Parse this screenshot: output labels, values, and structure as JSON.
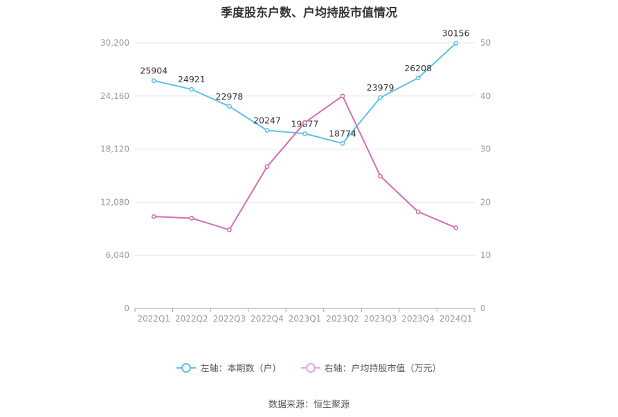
{
  "chart_data": {
    "type": "line",
    "title": "季度股东户数、户均持股市值情况",
    "categories": [
      "2022Q1",
      "2022Q2",
      "2022Q3",
      "2022Q4",
      "2023Q1",
      "2023Q2",
      "2023Q3",
      "2023Q4",
      "2024Q1"
    ],
    "series": [
      {
        "name": "左轴：本期数（户）",
        "axis": "left",
        "color": "#5bc0eb",
        "values": [
          25904,
          24921,
          22978,
          20247,
          19877,
          18774,
          23979,
          26208,
          30156
        ],
        "labels": [
          "25904",
          "24921",
          "22978",
          "20247",
          "19877",
          "18774",
          "23979",
          "26208",
          "30156"
        ]
      },
      {
        "name": "右轴：户均持股市值（万元）",
        "axis": "right",
        "color": "#d36db0",
        "values": [
          17.3,
          17.0,
          14.8,
          26.7,
          35.0,
          40.0,
          24.9,
          18.2,
          15.2
        ]
      }
    ],
    "y_left": {
      "ticks": [
        "0",
        "6,040",
        "12,080",
        "18,120",
        "24,160",
        "30,200"
      ],
      "ylim": [
        0,
        30200
      ]
    },
    "y_right": {
      "ticks": [
        "0",
        "10",
        "20",
        "30",
        "40",
        "50"
      ],
      "ylim": [
        0,
        50
      ]
    },
    "grid": true,
    "legend_position": "bottom"
  },
  "source": "数据来源：恒生聚源"
}
